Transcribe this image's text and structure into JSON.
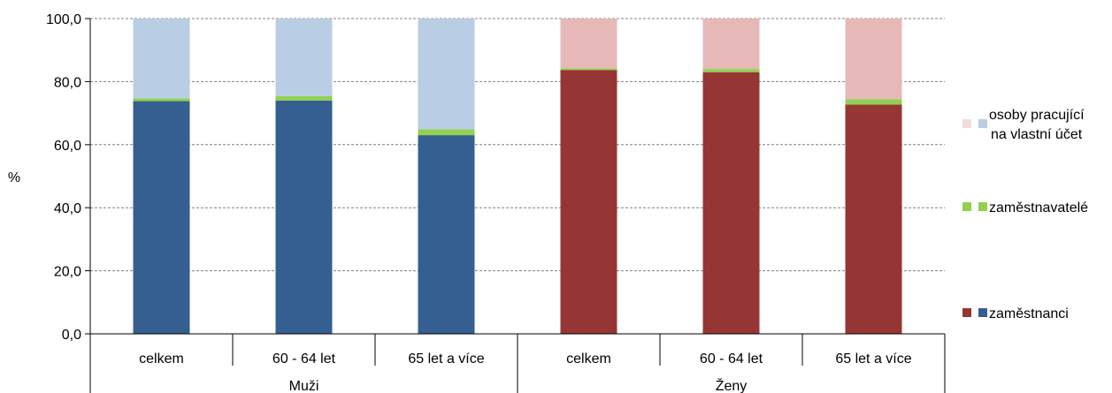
{
  "chart_data": {
    "type": "bar",
    "stacked": true,
    "ylabel": "%",
    "ylim": [
      0,
      100
    ],
    "yticks": [
      "0,0",
      "20,0",
      "40,0",
      "60,0",
      "80,0",
      "100,0"
    ],
    "grid": true,
    "legend_position": "right",
    "groups": [
      {
        "label": "Muži",
        "categories": [
          "celkem",
          "60 - 64 let",
          "65 let a více"
        ],
        "series": [
          {
            "key": "zamestnanci",
            "values": [
              73.8,
              74.0,
              63.0
            ]
          },
          {
            "key": "zamestnavatele",
            "values": [
              0.9,
              1.4,
              1.9
            ]
          },
          {
            "key": "osoby",
            "values": [
              25.3,
              24.6,
              35.1
            ]
          }
        ],
        "colors": {
          "zamestnanci": "#355f91",
          "zamestnavatele": "#92d050",
          "osoby": "#b9cde5"
        }
      },
      {
        "label": "Ženy",
        "categories": [
          "celkem",
          "60 - 64 let",
          "65 let a více"
        ],
        "series": [
          {
            "key": "zamestnanci",
            "values": [
              83.7,
              83.0,
              72.7
            ]
          },
          {
            "key": "zamestnavatele",
            "values": [
              0.5,
              1.0,
              1.7
            ]
          },
          {
            "key": "osoby",
            "values": [
              15.8,
              16.0,
              25.6
            ]
          }
        ],
        "colors": {
          "zamestnanci": "#963634",
          "zamestnavatele": "#92d050",
          "osoby": "#e6b9b8"
        }
      }
    ],
    "legend": [
      {
        "key": "osoby",
        "lines": [
          "osoby pracující",
          "na vlastní účet"
        ],
        "colors": [
          "#f2dcdb",
          "#b9cde5"
        ]
      },
      {
        "key": "zamestnavatele",
        "lines": [
          "zaměstnavatelé"
        ],
        "colors": [
          "#92d050",
          "#92d050"
        ]
      },
      {
        "key": "zamestnanci",
        "lines": [
          "zaměstnanci"
        ],
        "colors": [
          "#963634",
          "#355f91"
        ]
      }
    ]
  }
}
